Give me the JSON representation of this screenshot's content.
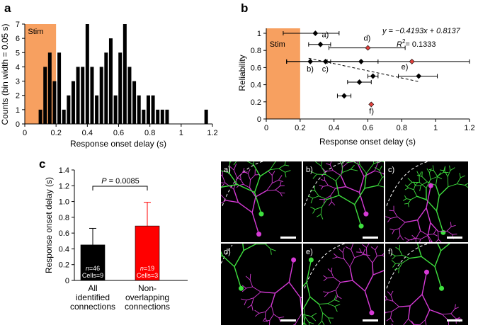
{
  "panels": [
    {
      "letter": "a"
    },
    {
      "letter": "b"
    },
    {
      "letter": "c"
    }
  ],
  "chart_data": [
    {
      "panel": "a",
      "type": "bar",
      "xlabel": "Response onset delay (s)",
      "ylabel": "Counts (bin width = 0.05 s)",
      "xlim": [
        0,
        1.2
      ],
      "ylim": [
        0,
        7
      ],
      "xticks": [
        "0",
        "0.2",
        "0.4",
        "0.6",
        "0.8",
        "1",
        "1.2"
      ],
      "yticks": [
        "0",
        "1",
        "2",
        "3",
        "4",
        "5",
        "6",
        "7"
      ],
      "stim": {
        "label": "Stim",
        "x_start": 0.0,
        "x_end": 0.2,
        "color": "#f7a060"
      },
      "bar_color": "#000000",
      "x": [
        0.1,
        0.13,
        0.16,
        0.19,
        0.22,
        0.25,
        0.28,
        0.31,
        0.34,
        0.37,
        0.4,
        0.43,
        0.46,
        0.49,
        0.52,
        0.55,
        0.58,
        0.61,
        0.64,
        0.67,
        0.7,
        0.73,
        0.76,
        0.79,
        0.82,
        0.85,
        0.88,
        0.91,
        1.16
      ],
      "values": [
        1,
        4,
        5,
        3,
        5,
        1,
        2,
        3,
        4,
        4,
        7,
        4,
        2,
        4,
        5,
        6,
        2,
        5,
        7,
        4,
        3,
        2,
        1,
        2,
        2,
        1,
        1,
        1,
        1
      ]
    },
    {
      "panel": "b",
      "type": "scatter",
      "xlabel": "Response onset delay (s)",
      "ylabel": "Reliability",
      "xlim": [
        0,
        1.2
      ],
      "ylim": [
        0,
        1
      ],
      "xticks": [
        "0",
        "0.2",
        "0.4",
        "0.6",
        "0.8",
        "1",
        "1.2"
      ],
      "yticks": [
        "0",
        "0.2",
        "0.4",
        "0.6",
        "0.8",
        "1"
      ],
      "stim": {
        "label": "Stim",
        "x_start": 0.0,
        "x_end": 0.2,
        "color": "#f7a060"
      },
      "equation": "y = −0.4193x + 0.8137",
      "r2_label": "R",
      "r2_value": "= 0.1333",
      "fit": {
        "slope": -0.4193,
        "intercept": 0.8137,
        "x_range": [
          0.25,
          0.9
        ]
      },
      "points": [
        {
          "x": 0.29,
          "y": 1.0,
          "xerr_lo": 0.1,
          "xerr_hi": 0.43,
          "color": "#000000",
          "label": ""
        },
        {
          "x": 0.32,
          "y": 0.87,
          "xerr_lo": 0.25,
          "xerr_hi": 0.38,
          "color": "#000000",
          "label": "a)"
        },
        {
          "x": 0.6,
          "y": 0.83,
          "xerr_lo": 0.37,
          "xerr_hi": 0.82,
          "color": "#e0413c",
          "label": "d)"
        },
        {
          "x": 0.26,
          "y": 0.67,
          "xerr_lo": 0.12,
          "xerr_hi": 0.38,
          "color": "#000000",
          "label": "b)"
        },
        {
          "x": 0.35,
          "y": 0.67,
          "xerr_lo": 0.12,
          "xerr_hi": 0.56,
          "color": "#000000",
          "label": "c)"
        },
        {
          "x": 0.56,
          "y": 0.67,
          "xerr_lo": 0.36,
          "xerr_hi": 0.66,
          "color": "#000000",
          "label": ""
        },
        {
          "x": 0.86,
          "y": 0.67,
          "xerr_lo": 0.12,
          "xerr_hi": 1.2,
          "color": "#e0413c",
          "label": "e)"
        },
        {
          "x": 0.63,
          "y": 0.5,
          "xerr_lo": 0.6,
          "xerr_hi": 0.66,
          "color": "#000000",
          "label": ""
        },
        {
          "x": 0.9,
          "y": 0.5,
          "xerr_lo": 0.78,
          "xerr_hi": 1.01,
          "color": "#000000",
          "label": ""
        },
        {
          "x": 0.55,
          "y": 0.43,
          "xerr_lo": 0.48,
          "xerr_hi": 0.62,
          "color": "#000000",
          "label": ""
        },
        {
          "x": 0.46,
          "y": 0.27,
          "xerr_lo": 0.42,
          "xerr_hi": 0.5,
          "color": "#000000",
          "label": ""
        },
        {
          "x": 0.62,
          "y": 0.17,
          "xerr_lo": 0.62,
          "xerr_hi": 0.62,
          "color": "#e0413c",
          "label": "f)"
        }
      ]
    },
    {
      "panel": "c",
      "type": "bar",
      "ylabel": "Response onset delay (s)",
      "ylim": [
        0,
        1.4
      ],
      "yticks": [
        "0",
        "0.2",
        "0.4",
        "0.6",
        "0.8",
        "1.0",
        "1.2",
        "1.4"
      ],
      "categories": [
        "All identified connections",
        "Non-overlapping connections"
      ],
      "category_lines": [
        [
          "All",
          "identified",
          "connections"
        ],
        [
          "Non-",
          "overlapping",
          "connections"
        ]
      ],
      "values": [
        0.45,
        0.69
      ],
      "errors": [
        0.21,
        0.3
      ],
      "colors": [
        "#000000",
        "#ff0000"
      ],
      "bar_labels": [
        {
          "n_prefix": "n",
          "n_value": "=46",
          "cells": "Cells=9"
        },
        {
          "n_prefix": "n",
          "n_value": "=19",
          "cells": "Cells=3"
        }
      ],
      "significance": {
        "p_prefix": "P",
        "p_value": " = 0.0085"
      }
    }
  ],
  "images": {
    "tiles": [
      {
        "label": "a)"
      },
      {
        "label": "b)"
      },
      {
        "label": "c)"
      },
      {
        "label": "d)"
      },
      {
        "label": "e)"
      },
      {
        "label": "f)"
      }
    ],
    "neuron_colors": {
      "magenta": "#d63ad6",
      "green": "#3ee03e"
    }
  }
}
